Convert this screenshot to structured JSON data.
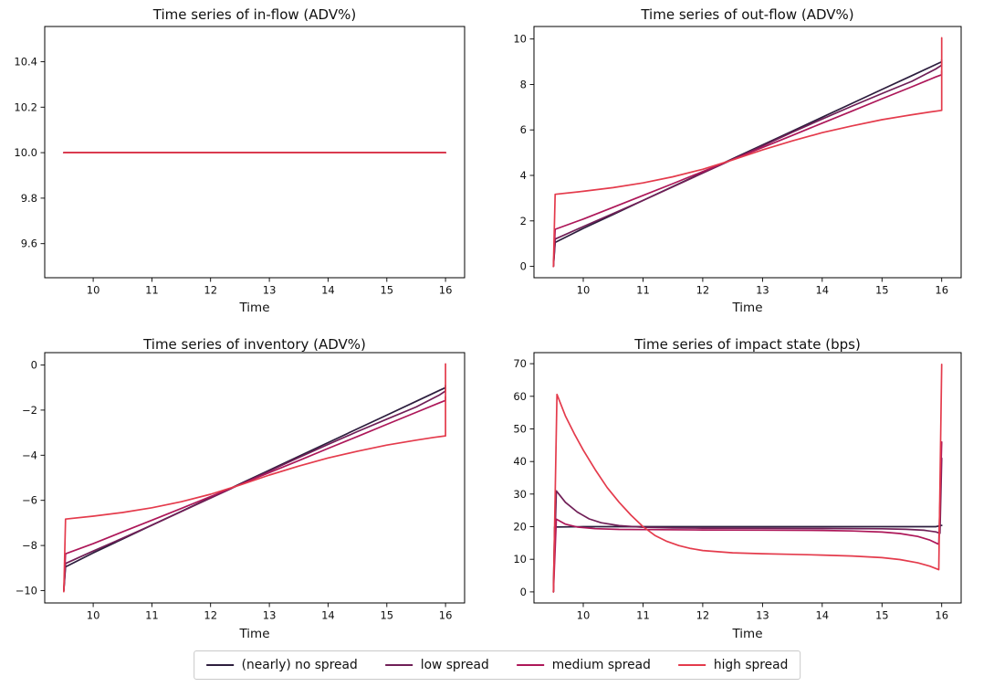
{
  "figure": {
    "background": "#ffffff",
    "frame_color": "#000000",
    "tick_color": "#000000"
  },
  "legend": {
    "items": [
      {
        "label": "(nearly) no spread",
        "color": "#2d1e3e"
      },
      {
        "label": "low spread",
        "color": "#701f57"
      },
      {
        "label": "medium spread",
        "color": "#ad1759"
      },
      {
        "label": "high spread",
        "color": "#e43b4c"
      }
    ]
  },
  "chart_data": [
    {
      "type": "line",
      "title": "Time series of in-flow (ADV%)",
      "xlabel": "Time",
      "xlim": [
        9.175,
        16.325
      ],
      "ylim": [
        9.45,
        10.555
      ],
      "xticks": [
        10,
        11,
        12,
        13,
        14,
        15,
        16
      ],
      "xticklabels": [
        "10",
        "11",
        "12",
        "13",
        "14",
        "15",
        "16"
      ],
      "yticks": [
        9.6,
        9.8,
        10.0,
        10.2,
        10.4
      ],
      "yticklabels": [
        "9.6",
        "9.8",
        "10.0",
        "10.2",
        "10.4"
      ],
      "grid": false,
      "series": [
        {
          "name": "(nearly) no spread",
          "color": "#2d1e3e",
          "points": [
            [
              9.5,
              10.0
            ],
            [
              16,
              10.0
            ]
          ]
        },
        {
          "name": "low spread",
          "color": "#701f57",
          "points": [
            [
              9.5,
              10.0
            ],
            [
              16,
              10.0
            ]
          ]
        },
        {
          "name": "medium spread",
          "color": "#ad1759",
          "points": [
            [
              9.5,
              10.0
            ],
            [
              16,
              10.0
            ]
          ]
        },
        {
          "name": "high spread",
          "color": "#e43b4c",
          "points": [
            [
              9.5,
              10.0
            ],
            [
              16,
              10.0
            ]
          ]
        }
      ]
    },
    {
      "type": "line",
      "title": "Time series of out-flow (ADV%)",
      "xlabel": "Time",
      "xlim": [
        9.175,
        16.325
      ],
      "ylim": [
        -0.5,
        10.55
      ],
      "xticks": [
        10,
        11,
        12,
        13,
        14,
        15,
        16
      ],
      "xticklabels": [
        "10",
        "11",
        "12",
        "13",
        "14",
        "15",
        "16"
      ],
      "yticks": [
        0,
        2,
        4,
        6,
        8,
        10
      ],
      "yticklabels": [
        "0",
        "2",
        "4",
        "6",
        "8",
        "10"
      ],
      "grid": false,
      "series": [
        {
          "name": "(nearly) no spread",
          "color": "#2d1e3e",
          "points": [
            [
              9.5,
              0
            ],
            [
              9.53,
              1.05
            ],
            [
              10,
              1.67
            ],
            [
              10.5,
              2.28
            ],
            [
              11,
              2.9
            ],
            [
              11.5,
              3.51
            ],
            [
              12,
              4.12
            ],
            [
              12.5,
              4.73
            ],
            [
              13,
              5.34
            ],
            [
              13.5,
              5.95
            ],
            [
              14,
              6.56
            ],
            [
              14.5,
              7.17
            ],
            [
              15,
              7.78
            ],
            [
              15.5,
              8.39
            ],
            [
              15.9,
              8.88
            ],
            [
              16,
              9.0
            ],
            [
              16,
              9.1
            ]
          ]
        },
        {
          "name": "low spread",
          "color": "#701f57",
          "points": [
            [
              9.5,
              0
            ],
            [
              9.53,
              1.2
            ],
            [
              10,
              1.75
            ],
            [
              10.5,
              2.32
            ],
            [
              11,
              2.9
            ],
            [
              11.5,
              3.5
            ],
            [
              12,
              4.1
            ],
            [
              12.5,
              4.7
            ],
            [
              13,
              5.3
            ],
            [
              13.5,
              5.9
            ],
            [
              14,
              6.48
            ],
            [
              14.5,
              7.05
            ],
            [
              15,
              7.6
            ],
            [
              15.5,
              8.14
            ],
            [
              15.9,
              8.68
            ],
            [
              16,
              8.85
            ],
            [
              16,
              9.0
            ]
          ]
        },
        {
          "name": "medium spread",
          "color": "#ad1759",
          "points": [
            [
              9.5,
              0
            ],
            [
              9.53,
              1.63
            ],
            [
              10,
              2.08
            ],
            [
              10.5,
              2.6
            ],
            [
              11,
              3.12
            ],
            [
              11.5,
              3.64
            ],
            [
              12,
              4.17
            ],
            [
              12.5,
              4.7
            ],
            [
              13,
              5.23
            ],
            [
              13.5,
              5.76
            ],
            [
              14,
              6.3
            ],
            [
              14.5,
              6.83
            ],
            [
              15,
              7.37
            ],
            [
              15.5,
              7.9
            ],
            [
              15.9,
              8.33
            ],
            [
              16,
              8.43
            ],
            [
              16,
              8.6
            ]
          ]
        },
        {
          "name": "high spread",
          "color": "#e43b4c",
          "points": [
            [
              9.5,
              0
            ],
            [
              9.53,
              3.17
            ],
            [
              10,
              3.3
            ],
            [
              10.5,
              3.46
            ],
            [
              11,
              3.67
            ],
            [
              11.5,
              3.94
            ],
            [
              12,
              4.27
            ],
            [
              12.5,
              4.68
            ],
            [
              12.75,
              4.9
            ],
            [
              13,
              5.12
            ],
            [
              13.5,
              5.52
            ],
            [
              14,
              5.88
            ],
            [
              14.5,
              6.18
            ],
            [
              15,
              6.45
            ],
            [
              15.5,
              6.67
            ],
            [
              15.8,
              6.79
            ],
            [
              16,
              6.86
            ],
            [
              16,
              10.05
            ]
          ]
        }
      ]
    },
    {
      "type": "line",
      "title": "Time series of inventory (ADV%)",
      "xlabel": "Time",
      "xlim": [
        9.175,
        16.325
      ],
      "ylim": [
        -10.55,
        0.55
      ],
      "xticks": [
        10,
        11,
        12,
        13,
        14,
        15,
        16
      ],
      "xticklabels": [
        "10",
        "11",
        "12",
        "13",
        "14",
        "15",
        "16"
      ],
      "yticks": [
        -10,
        -8,
        -6,
        -4,
        -2,
        0
      ],
      "yticklabels": [
        "−10",
        "−8",
        "−6",
        "−4",
        "−2",
        "0"
      ],
      "grid": false,
      "series": [
        {
          "name": "(nearly) no spread",
          "color": "#2d1e3e",
          "points": [
            [
              9.5,
              -10
            ],
            [
              9.53,
              -8.95
            ],
            [
              10,
              -8.33
            ],
            [
              10.5,
              -7.72
            ],
            [
              11,
              -7.1
            ],
            [
              11.5,
              -6.49
            ],
            [
              12,
              -5.88
            ],
            [
              12.5,
              -5.27
            ],
            [
              13,
              -4.66
            ],
            [
              13.5,
              -4.05
            ],
            [
              14,
              -3.44
            ],
            [
              14.5,
              -2.83
            ],
            [
              15,
              -2.22
            ],
            [
              15.5,
              -1.61
            ],
            [
              15.9,
              -1.12
            ],
            [
              16,
              -1.0
            ],
            [
              16,
              -0.9
            ]
          ]
        },
        {
          "name": "low spread",
          "color": "#701f57",
          "points": [
            [
              9.5,
              -10
            ],
            [
              9.53,
              -8.8
            ],
            [
              10,
              -8.25
            ],
            [
              10.5,
              -7.68
            ],
            [
              11,
              -7.1
            ],
            [
              11.5,
              -6.5
            ],
            [
              12,
              -5.9
            ],
            [
              12.5,
              -5.3
            ],
            [
              13,
              -4.7
            ],
            [
              13.5,
              -4.1
            ],
            [
              14,
              -3.52
            ],
            [
              14.5,
              -2.95
            ],
            [
              15,
              -2.4
            ],
            [
              15.5,
              -1.86
            ],
            [
              15.9,
              -1.32
            ],
            [
              16,
              -1.15
            ],
            [
              16,
              -1.0
            ]
          ]
        },
        {
          "name": "medium spread",
          "color": "#ad1759",
          "points": [
            [
              9.5,
              -10
            ],
            [
              9.53,
              -8.37
            ],
            [
              10,
              -7.92
            ],
            [
              10.5,
              -7.4
            ],
            [
              11,
              -6.88
            ],
            [
              11.5,
              -6.36
            ],
            [
              12,
              -5.83
            ],
            [
              12.5,
              -5.3
            ],
            [
              13,
              -4.77
            ],
            [
              13.5,
              -4.24
            ],
            [
              14,
              -3.7
            ],
            [
              14.5,
              -3.17
            ],
            [
              15,
              -2.63
            ],
            [
              15.5,
              -2.1
            ],
            [
              15.9,
              -1.67
            ],
            [
              16,
              -1.57
            ],
            [
              16,
              -1.4
            ]
          ]
        },
        {
          "name": "high spread",
          "color": "#e43b4c",
          "points": [
            [
              9.5,
              -10.05
            ],
            [
              9.53,
              -6.83
            ],
            [
              10,
              -6.7
            ],
            [
              10.5,
              -6.54
            ],
            [
              11,
              -6.33
            ],
            [
              11.5,
              -6.06
            ],
            [
              12,
              -5.73
            ],
            [
              12.5,
              -5.32
            ],
            [
              12.75,
              -5.1
            ],
            [
              13,
              -4.88
            ],
            [
              13.5,
              -4.48
            ],
            [
              14,
              -4.12
            ],
            [
              14.5,
              -3.82
            ],
            [
              15,
              -3.55
            ],
            [
              15.5,
              -3.33
            ],
            [
              15.8,
              -3.21
            ],
            [
              16,
              -3.14
            ],
            [
              16,
              0.05
            ]
          ]
        }
      ]
    },
    {
      "type": "line",
      "title": "Time series of impact state (bps)",
      "xlabel": "Time",
      "xlim": [
        9.175,
        16.325
      ],
      "ylim": [
        -3.4,
        73.4
      ],
      "xticks": [
        10,
        11,
        12,
        13,
        14,
        15,
        16
      ],
      "xticklabels": [
        "10",
        "11",
        "12",
        "13",
        "14",
        "15",
        "16"
      ],
      "yticks": [
        0,
        10,
        20,
        30,
        40,
        50,
        60,
        70
      ],
      "yticklabels": [
        "0",
        "10",
        "20",
        "30",
        "40",
        "50",
        "60",
        "70"
      ],
      "grid": false,
      "series": [
        {
          "name": "(nearly) no spread",
          "color": "#2d1e3e",
          "points": [
            [
              9.5,
              0
            ],
            [
              9.52,
              19.9
            ],
            [
              10,
              20.0
            ],
            [
              11,
              20.0
            ],
            [
              12,
              20.0
            ],
            [
              13,
              20.0
            ],
            [
              14,
              20.0
            ],
            [
              15,
              20.0
            ],
            [
              15.9,
              20.0
            ],
            [
              16,
              20.4
            ]
          ]
        },
        {
          "name": "low spread",
          "color": "#701f57",
          "points": [
            [
              9.5,
              0
            ],
            [
              9.55,
              31.0
            ],
            [
              9.7,
              27.5
            ],
            [
              9.9,
              24.5
            ],
            [
              10.1,
              22.4
            ],
            [
              10.3,
              21.2
            ],
            [
              10.6,
              20.3
            ],
            [
              11,
              19.8
            ],
            [
              11.5,
              19.6
            ],
            [
              12,
              19.55
            ],
            [
              13,
              19.5
            ],
            [
              14,
              19.45
            ],
            [
              15,
              19.35
            ],
            [
              15.4,
              19.2
            ],
            [
              15.7,
              18.9
            ],
            [
              15.9,
              18.4
            ],
            [
              15.97,
              18.0
            ],
            [
              16,
              41.0
            ]
          ]
        },
        {
          "name": "medium spread",
          "color": "#ad1759",
          "points": [
            [
              9.5,
              0
            ],
            [
              9.55,
              22.3
            ],
            [
              9.7,
              20.8
            ],
            [
              9.9,
              19.9
            ],
            [
              10.2,
              19.4
            ],
            [
              10.6,
              19.15
            ],
            [
              11,
              19.1
            ],
            [
              12,
              19.0
            ],
            [
              13,
              18.95
            ],
            [
              14,
              18.85
            ],
            [
              14.5,
              18.7
            ],
            [
              15,
              18.35
            ],
            [
              15.3,
              17.9
            ],
            [
              15.6,
              17.0
            ],
            [
              15.8,
              15.9
            ],
            [
              15.95,
              14.6
            ],
            [
              16,
              46.0
            ]
          ]
        },
        {
          "name": "high spread",
          "color": "#e43b4c",
          "points": [
            [
              9.5,
              0
            ],
            [
              9.56,
              60.6
            ],
            [
              9.7,
              54.0
            ],
            [
              9.85,
              48.5
            ],
            [
              10,
              43.5
            ],
            [
              10.2,
              37.5
            ],
            [
              10.4,
              32.0
            ],
            [
              10.6,
              27.5
            ],
            [
              10.8,
              23.5
            ],
            [
              11,
              20.0
            ],
            [
              11.2,
              17.3
            ],
            [
              11.4,
              15.5
            ],
            [
              11.6,
              14.2
            ],
            [
              11.8,
              13.3
            ],
            [
              12,
              12.7
            ],
            [
              12.5,
              12.0
            ],
            [
              13,
              11.7
            ],
            [
              13.5,
              11.5
            ],
            [
              14,
              11.3
            ],
            [
              14.5,
              11.0
            ],
            [
              15,
              10.5
            ],
            [
              15.3,
              9.9
            ],
            [
              15.6,
              8.9
            ],
            [
              15.8,
              7.9
            ],
            [
              15.95,
              6.8
            ],
            [
              16,
              69.8
            ]
          ]
        }
      ]
    }
  ]
}
